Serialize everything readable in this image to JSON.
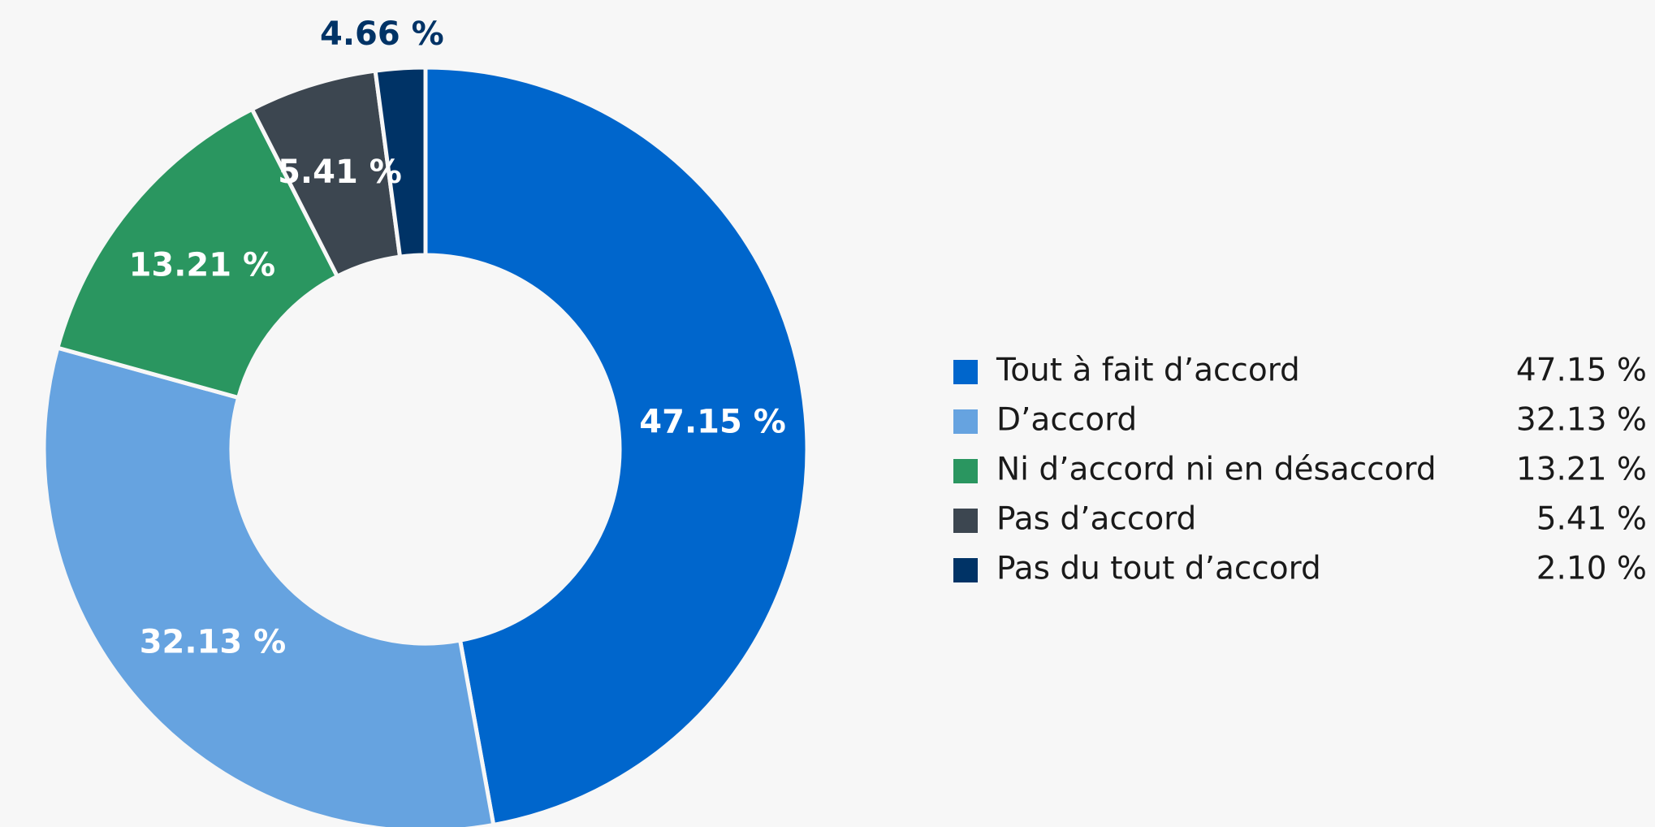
{
  "chart_data": {
    "type": "donut",
    "categories": [
      "Tout à fait d’accord",
      "D’accord",
      "Ni d’accord ni en désaccord",
      "Pas d’accord",
      "Pas du tout d’accord"
    ],
    "values": [
      47.15,
      32.13,
      13.21,
      5.41,
      2.1
    ],
    "value_labels": [
      "47.15 %",
      "32.13 %",
      "13.21 %",
      "5.41 %",
      "2.10 %"
    ],
    "colors": [
      "#0066cc",
      "#66a3e0",
      "#2a9660",
      "#3c4650",
      "#003366"
    ],
    "annotations": [
      "4.66 %"
    ],
    "legend": "right"
  }
}
